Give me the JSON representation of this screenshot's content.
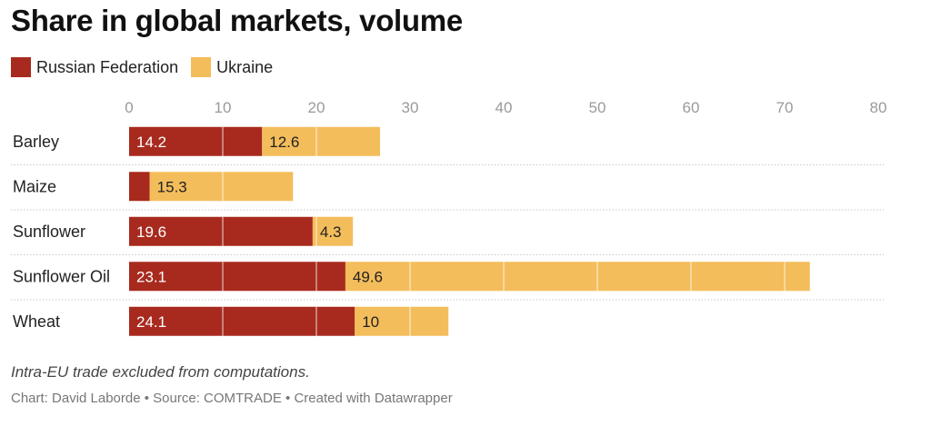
{
  "title": "Share in global markets, volume",
  "legend": [
    {
      "label": "Russian Federation",
      "color": "#a82a1e"
    },
    {
      "label": "Ukraine",
      "color": "#f4bd5b"
    }
  ],
  "note": "Intra-EU trade excluded from computations.",
  "credit": "Chart: David Laborde • Source: COMTRADE • Created with Datawrapper",
  "chart_data": {
    "type": "bar",
    "orientation": "horizontal",
    "stacked": true,
    "categories": [
      "Barley",
      "Maize",
      "Sunflower",
      "Sunflower Oil",
      "Wheat"
    ],
    "series": [
      {
        "name": "Russian Federation",
        "color": "#a82a1e",
        "values": [
          14.2,
          2.2,
          19.6,
          23.1,
          24.1
        ],
        "labels": [
          "14.2",
          "",
          "19.6",
          "23.1",
          "24.1"
        ]
      },
      {
        "name": "Ukraine",
        "color": "#f4bd5b",
        "values": [
          12.6,
          15.3,
          4.3,
          49.6,
          10
        ],
        "labels": [
          "12.6",
          "15.3",
          "4.3",
          "49.6",
          "10"
        ]
      }
    ],
    "xlim": [
      0,
      80
    ],
    "xticks": [
      "0",
      "10",
      "20",
      "30",
      "40",
      "50",
      "60",
      "70",
      "80"
    ],
    "tick_values": [
      0,
      10,
      20,
      30,
      40,
      50,
      60,
      70,
      80
    ],
    "axis_position": "top",
    "grid": true,
    "legend_position": "top-left"
  }
}
